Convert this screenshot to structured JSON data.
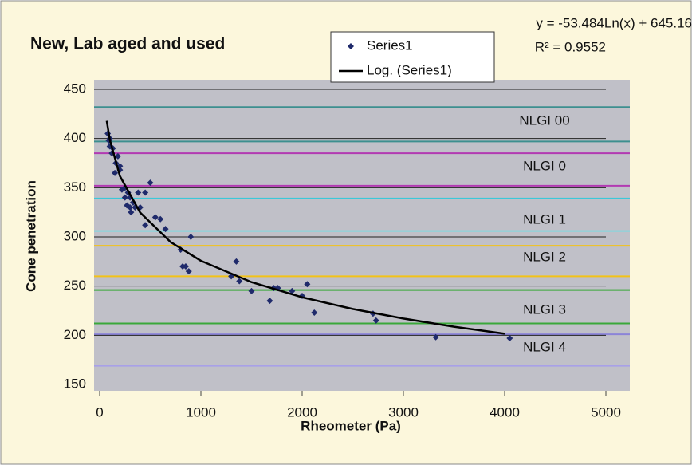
{
  "chart_data": {
    "type": "scatter",
    "title": "New, Lab aged and used",
    "x_label": "Rheometer (Pa)",
    "y_label": "Cone penetration",
    "xlim": [
      0,
      5000
    ],
    "xticks": [
      0,
      1000,
      2000,
      3000,
      4000,
      5000
    ],
    "ylim": [
      150,
      450
    ],
    "yticks": [
      150,
      200,
      250,
      300,
      350,
      400,
      450
    ],
    "grid": true,
    "series": [
      {
        "name": "Series1",
        "color": "#1f2a6b",
        "marker": "diamond",
        "x": [
          80,
          90,
          100,
          100,
          120,
          130,
          150,
          160,
          180,
          200,
          200,
          220,
          250,
          250,
          270,
          280,
          300,
          300,
          310,
          330,
          350,
          380,
          400,
          450,
          450,
          500,
          550,
          600,
          650,
          800,
          820,
          850,
          880,
          900,
          1300,
          1350,
          1380,
          1500,
          1680,
          1720,
          1760,
          1900,
          2000,
          2050,
          2120,
          2700,
          2730,
          3320,
          4050
        ],
        "values": [
          405,
          398,
          392,
          400,
          385,
          390,
          365,
          375,
          382,
          372,
          368,
          348,
          350,
          340,
          332,
          345,
          340,
          330,
          325,
          335,
          330,
          345,
          330,
          345,
          312,
          355,
          320,
          318,
          308,
          287,
          270,
          270,
          265,
          300,
          260,
          275,
          255,
          245,
          235,
          248,
          248,
          245,
          240,
          252,
          223,
          222,
          215,
          198,
          197
        ]
      },
      {
        "name": "Log. (Series1)",
        "color": "#000000",
        "marker": "line",
        "x": [
          70,
          100,
          200,
          400,
          700,
          1000,
          1500,
          2000,
          2500,
          3000,
          3500,
          4000
        ],
        "values": [
          417.9,
          398.9,
          361.8,
          324.7,
          294.8,
          275.7,
          254.0,
          238.6,
          226.7,
          217.0,
          208.7,
          201.6
        ]
      }
    ],
    "reference_lines": [
      {
        "value": 432,
        "color": "#3d8f8f"
      },
      {
        "value": 397,
        "color": "#3d8f8f"
      },
      {
        "value": 385,
        "color": "#b23ab2"
      },
      {
        "value": 352,
        "color": "#b23ab2"
      },
      {
        "value": 339,
        "color": "#3cc8d8"
      },
      {
        "value": 306,
        "color": "#7fd8e0"
      },
      {
        "value": 291,
        "color": "#f2c218"
      },
      {
        "value": 260,
        "color": "#f2c218"
      },
      {
        "value": 246,
        "color": "#3aa83a"
      },
      {
        "value": 212,
        "color": "#3aa83a"
      },
      {
        "value": 201,
        "color": "#8c84d8"
      },
      {
        "value": 169,
        "color": "#a8a0e8"
      }
    ],
    "annotations": [
      "NLGI 00",
      "NLGI 0",
      "NLGI 1",
      "NLGI 2",
      "NLGI 3",
      "NLGI 4"
    ],
    "equation": "y = -53.484Ln(x) + 645.16",
    "r_squared": "R² = 0.9552"
  }
}
